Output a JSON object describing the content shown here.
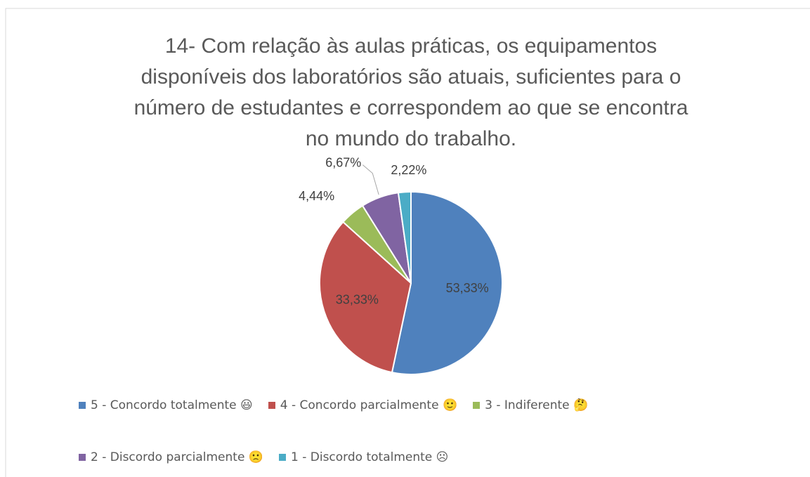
{
  "chart_data": {
    "type": "pie",
    "title": [
      "14- Com relação às aulas práticas, os equipamentos",
      "disponíveis dos laboratórios são atuais, suficientes para o",
      "número de estudantes e correspondem ao que se encontra",
      "no mundo do trabalho."
    ],
    "categories": [
      "5 - Concordo totalmente 😃",
      "4 - Concordo parcialmente 🙂",
      "3 - Indiferente 🤔",
      "2 - Discordo parcialmente 🙁",
      "1 - Discordo totalmente ☹"
    ],
    "values": [
      53.33,
      33.33,
      4.44,
      6.67,
      2.22
    ],
    "value_labels": [
      "53,33%",
      "33,33%",
      "4,44%",
      "6,67%",
      "2,22%"
    ],
    "colors": [
      "#4f81bd",
      "#c0504d",
      "#9bbb59",
      "#8064a2",
      "#4bacc6"
    ],
    "legend": "bottom"
  }
}
